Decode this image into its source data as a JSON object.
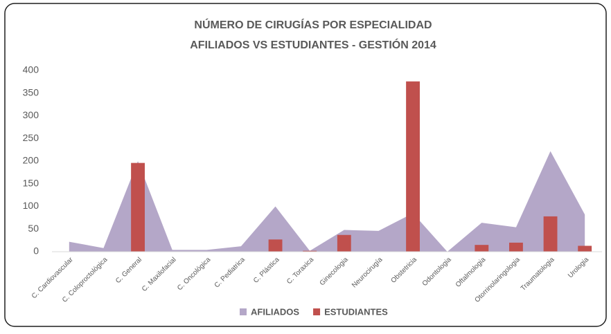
{
  "chart_data": {
    "type": "combo",
    "title": [
      "NÚMERO DE CIRUGÍAS POR ESPECIALIDAD",
      "AFILIADOS VS ESTUDIANTES - GESTIÓN 2014"
    ],
    "categories": [
      "C. Cardiovascular",
      "C. Coloproctológica",
      "C. General",
      "C. Maxilofacial",
      "C. Oncológica",
      "C. Pediatrica",
      "C. Plástica",
      "C. Toraxica",
      "Ginecologia",
      "Neurocirugía",
      "Obstetricia",
      "Odontologia",
      "Oftalmologia",
      "Otorrinolaringologia",
      "Traumatologia",
      "Urologia"
    ],
    "series": [
      {
        "name": "AFILIADOS",
        "type": "area",
        "color": "#b4a7c8",
        "values": [
          22,
          8,
          200,
          4,
          4,
          12,
          100,
          2,
          48,
          46,
          85,
          0,
          64,
          54,
          222,
          82
        ]
      },
      {
        "name": "ESTUDIANTES",
        "type": "bar",
        "color": "#c0504d",
        "values": [
          0,
          0,
          196,
          0,
          0,
          0,
          27,
          2,
          37,
          0,
          376,
          0,
          15,
          20,
          78,
          13
        ]
      }
    ],
    "ylim": [
      0,
      400
    ],
    "yticks": [
      0,
      50,
      100,
      150,
      200,
      250,
      300,
      350,
      400
    ],
    "grid": false,
    "legend": "bottom"
  }
}
